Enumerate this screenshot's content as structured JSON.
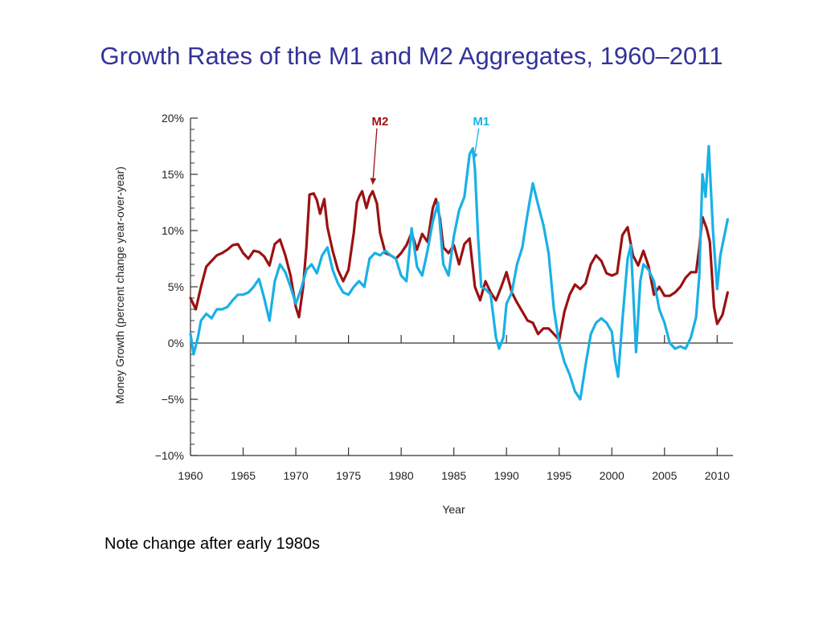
{
  "slide": {
    "title": "Growth Rates of the M1 and M2 Aggregates, 1960–2011",
    "note": "Note change after early 1980s"
  },
  "chart_data": {
    "type": "line",
    "xlabel": "Year",
    "ylabel": "Money Growth (percent change year-over-year)",
    "xlim": [
      1960,
      2011.5
    ],
    "ylim": [
      -10,
      20
    ],
    "x_ticks": [
      1960,
      1965,
      1970,
      1975,
      1980,
      1985,
      1990,
      1995,
      2000,
      2005,
      2010
    ],
    "x_tick_labels": [
      "1960",
      "1965",
      "1970",
      "1975",
      "1980",
      "1985",
      "1990",
      "1995",
      "2000",
      "2005",
      "2010"
    ],
    "y_ticks": [
      -10,
      -5,
      0,
      5,
      10,
      15,
      20
    ],
    "y_tick_labels": [
      "−10%",
      "−5%",
      "0%",
      "5%",
      "10%",
      "15%",
      "20%"
    ],
    "grid": false,
    "series": [
      {
        "name": "M2",
        "color": "#9b1111",
        "label_pos": [
          1978.0,
          19.8
        ],
        "arrow_to": [
          1977.3,
          14.1
        ],
        "points": [
          [
            1960.0,
            4.0
          ],
          [
            1960.5,
            3.0
          ],
          [
            1961.0,
            5.0
          ],
          [
            1961.5,
            6.8
          ],
          [
            1962.0,
            7.3
          ],
          [
            1962.5,
            7.8
          ],
          [
            1963.0,
            8.0
          ],
          [
            1963.5,
            8.3
          ],
          [
            1964.0,
            8.7
          ],
          [
            1964.5,
            8.8
          ],
          [
            1965.0,
            8.0
          ],
          [
            1965.5,
            7.5
          ],
          [
            1966.0,
            8.2
          ],
          [
            1966.5,
            8.1
          ],
          [
            1967.0,
            7.7
          ],
          [
            1967.5,
            6.9
          ],
          [
            1968.0,
            8.8
          ],
          [
            1968.5,
            9.2
          ],
          [
            1969.0,
            7.8
          ],
          [
            1969.5,
            6.0
          ],
          [
            1970.0,
            3.2
          ],
          [
            1970.3,
            2.3
          ],
          [
            1970.7,
            5.0
          ],
          [
            1971.0,
            8.5
          ],
          [
            1971.3,
            13.2
          ],
          [
            1971.7,
            13.3
          ],
          [
            1972.0,
            12.7
          ],
          [
            1972.3,
            11.5
          ],
          [
            1972.7,
            12.8
          ],
          [
            1973.0,
            10.3
          ],
          [
            1973.5,
            8.2
          ],
          [
            1974.0,
            6.5
          ],
          [
            1974.5,
            5.5
          ],
          [
            1975.0,
            6.5
          ],
          [
            1975.5,
            9.8
          ],
          [
            1975.8,
            12.5
          ],
          [
            1976.0,
            13.0
          ],
          [
            1976.3,
            13.5
          ],
          [
            1976.7,
            12.0
          ],
          [
            1977.0,
            13.0
          ],
          [
            1977.3,
            13.5
          ],
          [
            1977.7,
            12.4
          ],
          [
            1978.0,
            9.8
          ],
          [
            1978.5,
            8.0
          ],
          [
            1979.0,
            7.8
          ],
          [
            1979.5,
            7.5
          ],
          [
            1980.0,
            8.0
          ],
          [
            1980.5,
            8.7
          ],
          [
            1981.0,
            9.8
          ],
          [
            1981.5,
            8.3
          ],
          [
            1982.0,
            9.7
          ],
          [
            1982.5,
            9.0
          ],
          [
            1983.0,
            12.0
          ],
          [
            1983.3,
            12.8
          ],
          [
            1983.7,
            11.0
          ],
          [
            1984.0,
            8.5
          ],
          [
            1984.5,
            8.0
          ],
          [
            1985.0,
            8.7
          ],
          [
            1985.5,
            7.0
          ],
          [
            1986.0,
            8.8
          ],
          [
            1986.5,
            9.3
          ],
          [
            1987.0,
            5.0
          ],
          [
            1987.5,
            3.8
          ],
          [
            1988.0,
            5.5
          ],
          [
            1988.5,
            4.5
          ],
          [
            1989.0,
            3.8
          ],
          [
            1989.5,
            5.0
          ],
          [
            1990.0,
            6.3
          ],
          [
            1990.5,
            4.5
          ],
          [
            1991.0,
            3.6
          ],
          [
            1991.5,
            2.8
          ],
          [
            1992.0,
            2.0
          ],
          [
            1992.5,
            1.8
          ],
          [
            1993.0,
            0.8
          ],
          [
            1993.5,
            1.3
          ],
          [
            1994.0,
            1.3
          ],
          [
            1994.5,
            0.8
          ],
          [
            1995.0,
            0.3
          ],
          [
            1995.5,
            2.8
          ],
          [
            1996.0,
            4.3
          ],
          [
            1996.5,
            5.2
          ],
          [
            1997.0,
            4.8
          ],
          [
            1997.5,
            5.3
          ],
          [
            1998.0,
            7.0
          ],
          [
            1998.5,
            7.8
          ],
          [
            1999.0,
            7.3
          ],
          [
            1999.5,
            6.2
          ],
          [
            2000.0,
            6.0
          ],
          [
            2000.5,
            6.2
          ],
          [
            2001.0,
            9.6
          ],
          [
            2001.5,
            10.3
          ],
          [
            2002.0,
            7.8
          ],
          [
            2002.5,
            6.9
          ],
          [
            2003.0,
            8.2
          ],
          [
            2003.5,
            6.8
          ],
          [
            2004.0,
            4.3
          ],
          [
            2004.5,
            5.0
          ],
          [
            2005.0,
            4.2
          ],
          [
            2005.5,
            4.2
          ],
          [
            2006.0,
            4.5
          ],
          [
            2006.5,
            5.0
          ],
          [
            2007.0,
            5.8
          ],
          [
            2007.5,
            6.3
          ],
          [
            2008.0,
            6.3
          ],
          [
            2008.3,
            8.5
          ],
          [
            2008.6,
            11.2
          ],
          [
            2009.0,
            10.2
          ],
          [
            2009.3,
            9.0
          ],
          [
            2009.7,
            3.2
          ],
          [
            2010.0,
            1.7
          ],
          [
            2010.5,
            2.5
          ],
          [
            2011.0,
            4.5
          ]
        ]
      },
      {
        "name": "M1",
        "color": "#19b0e6",
        "label_pos": [
          1987.6,
          19.8
        ],
        "arrow_to": [
          1986.9,
          16.3
        ],
        "points": [
          [
            1960.0,
            0.8
          ],
          [
            1960.3,
            -1.0
          ],
          [
            1960.7,
            0.5
          ],
          [
            1961.0,
            2.0
          ],
          [
            1961.5,
            2.6
          ],
          [
            1962.0,
            2.2
          ],
          [
            1962.5,
            3.0
          ],
          [
            1963.0,
            3.0
          ],
          [
            1963.5,
            3.2
          ],
          [
            1964.0,
            3.8
          ],
          [
            1964.5,
            4.3
          ],
          [
            1965.0,
            4.3
          ],
          [
            1965.5,
            4.5
          ],
          [
            1966.0,
            5.0
          ],
          [
            1966.5,
            5.7
          ],
          [
            1967.0,
            4.0
          ],
          [
            1967.5,
            2.0
          ],
          [
            1968.0,
            5.5
          ],
          [
            1968.5,
            7.0
          ],
          [
            1969.0,
            6.3
          ],
          [
            1969.5,
            5.0
          ],
          [
            1970.0,
            3.5
          ],
          [
            1970.5,
            4.8
          ],
          [
            1971.0,
            6.5
          ],
          [
            1971.5,
            7.0
          ],
          [
            1972.0,
            6.2
          ],
          [
            1972.5,
            7.8
          ],
          [
            1973.0,
            8.5
          ],
          [
            1973.5,
            6.5
          ],
          [
            1974.0,
            5.3
          ],
          [
            1974.5,
            4.5
          ],
          [
            1975.0,
            4.3
          ],
          [
            1975.5,
            5.0
          ],
          [
            1976.0,
            5.5
          ],
          [
            1976.5,
            5.0
          ],
          [
            1977.0,
            7.5
          ],
          [
            1977.5,
            8.0
          ],
          [
            1978.0,
            7.8
          ],
          [
            1978.5,
            8.2
          ],
          [
            1979.0,
            7.8
          ],
          [
            1979.5,
            7.5
          ],
          [
            1980.0,
            6.0
          ],
          [
            1980.5,
            5.5
          ],
          [
            1981.0,
            10.2
          ],
          [
            1981.5,
            6.8
          ],
          [
            1982.0,
            6.0
          ],
          [
            1982.5,
            8.2
          ],
          [
            1983.0,
            10.8
          ],
          [
            1983.5,
            12.5
          ],
          [
            1984.0,
            7.0
          ],
          [
            1984.5,
            6.0
          ],
          [
            1985.0,
            9.5
          ],
          [
            1985.5,
            11.8
          ],
          [
            1986.0,
            13.0
          ],
          [
            1986.5,
            16.8
          ],
          [
            1986.8,
            17.3
          ],
          [
            1987.0,
            15.5
          ],
          [
            1987.3,
            9.5
          ],
          [
            1987.6,
            5.0
          ],
          [
            1988.0,
            4.8
          ],
          [
            1988.5,
            4.3
          ],
          [
            1989.0,
            0.5
          ],
          [
            1989.3,
            -0.5
          ],
          [
            1989.7,
            0.5
          ],
          [
            1990.0,
            3.5
          ],
          [
            1990.5,
            4.5
          ],
          [
            1991.0,
            7.0
          ],
          [
            1991.5,
            8.5
          ],
          [
            1992.0,
            11.5
          ],
          [
            1992.5,
            14.2
          ],
          [
            1993.0,
            12.3
          ],
          [
            1993.5,
            10.5
          ],
          [
            1994.0,
            8.0
          ],
          [
            1994.5,
            3.0
          ],
          [
            1995.0,
            0.0
          ],
          [
            1995.5,
            -1.7
          ],
          [
            1996.0,
            -2.8
          ],
          [
            1996.5,
            -4.3
          ],
          [
            1997.0,
            -5.0
          ],
          [
            1997.5,
            -2.0
          ],
          [
            1998.0,
            0.8
          ],
          [
            1998.5,
            1.8
          ],
          [
            1999.0,
            2.2
          ],
          [
            1999.5,
            1.8
          ],
          [
            2000.0,
            1.0
          ],
          [
            2000.3,
            -1.5
          ],
          [
            2000.6,
            -3.0
          ],
          [
            2001.0,
            2.0
          ],
          [
            2001.5,
            7.5
          ],
          [
            2001.8,
            8.7
          ],
          [
            2002.0,
            5.0
          ],
          [
            2002.3,
            -0.8
          ],
          [
            2002.7,
            5.5
          ],
          [
            2003.0,
            7.0
          ],
          [
            2003.5,
            6.5
          ],
          [
            2004.0,
            5.5
          ],
          [
            2004.5,
            3.0
          ],
          [
            2005.0,
            1.8
          ],
          [
            2005.5,
            0.0
          ],
          [
            2006.0,
            -0.5
          ],
          [
            2006.5,
            -0.3
          ],
          [
            2007.0,
            -0.5
          ],
          [
            2007.5,
            0.5
          ],
          [
            2008.0,
            2.3
          ],
          [
            2008.3,
            6.0
          ],
          [
            2008.6,
            15.0
          ],
          [
            2008.9,
            13.0
          ],
          [
            2009.2,
            17.5
          ],
          [
            2009.6,
            10.0
          ],
          [
            2010.0,
            4.8
          ],
          [
            2010.3,
            7.8
          ],
          [
            2011.0,
            11.0
          ]
        ]
      }
    ]
  }
}
